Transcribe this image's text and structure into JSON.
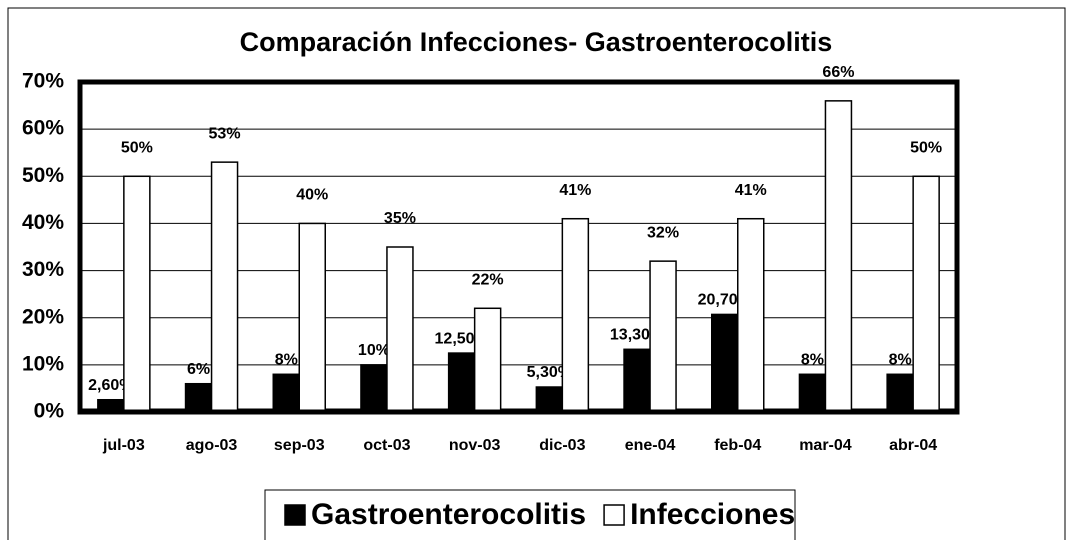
{
  "chart_data": {
    "type": "bar",
    "title": "Comparación Infecciones- Gastroenterocolitis",
    "categories": [
      "jul-03",
      "ago-03",
      "sep-03",
      "oct-03",
      "nov-03",
      "dic-03",
      "ene-04",
      "feb-04",
      "mar-04",
      "abr-04"
    ],
    "series": [
      {
        "name": "Gastroenterocolitis",
        "color": "#000000",
        "values": [
          2.6,
          6,
          8,
          10,
          12.5,
          5.3,
          13.3,
          20.7,
          8,
          8
        ],
        "value_labels": [
          "2,60%",
          "6%",
          "8%",
          "10%",
          "12,50%",
          "5,30%",
          "13,30%",
          "20,70%",
          "8%",
          "8%"
        ]
      },
      {
        "name": "Infecciones",
        "color": "#ffffff",
        "values": [
          50,
          53,
          40,
          35,
          22,
          41,
          32,
          41,
          66,
          50
        ],
        "value_labels": [
          "50%",
          "53%",
          "40%",
          "35%",
          "22%",
          "41%",
          "32%",
          "41%",
          "66%",
          "50%"
        ]
      }
    ],
    "ylim": [
      0,
      70
    ],
    "yticks": [
      {
        "value": 0,
        "label": "0%"
      },
      {
        "value": 10,
        "label": "10%"
      },
      {
        "value": 20,
        "label": "20%"
      },
      {
        "value": 30,
        "label": "30%"
      },
      {
        "value": 40,
        "label": "40%"
      },
      {
        "value": 50,
        "label": "50%"
      },
      {
        "value": 60,
        "label": "60%"
      },
      {
        "value": 70,
        "label": "70%"
      }
    ],
    "grid": true,
    "legend": "bottom"
  }
}
